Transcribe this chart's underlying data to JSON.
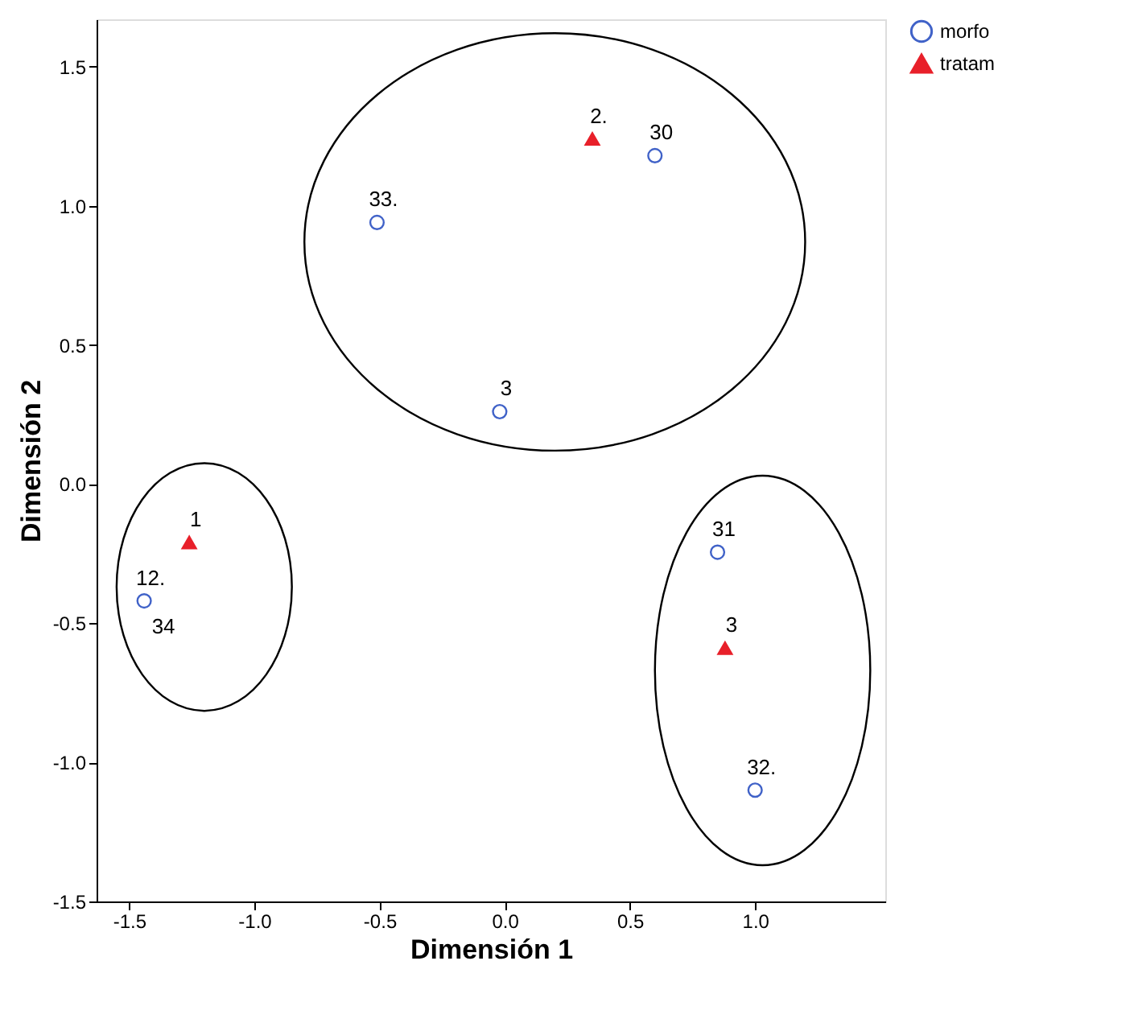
{
  "chart_data": {
    "type": "scatter",
    "xlabel": "Dimensión 1",
    "ylabel": "Dimensión 2",
    "xlim": [
      -1.63,
      1.52
    ],
    "xticks": [
      {
        "value": -1.5,
        "label": "-1.5"
      },
      {
        "value": -1.0,
        "label": "-1.0"
      },
      {
        "value": -0.5,
        "label": "-0.5"
      },
      {
        "value": 0.0,
        "label": "0.0"
      },
      {
        "value": 0.5,
        "label": "0.5"
      },
      {
        "value": 1.0,
        "label": "1.0"
      }
    ],
    "ylim": [
      -1.5,
      1.67
    ],
    "yticks": [
      {
        "value": -1.5,
        "label": "-1.5"
      },
      {
        "value": -1.0,
        "label": "-1.0"
      },
      {
        "value": -0.5,
        "label": "-0.5"
      },
      {
        "value": 0.0,
        "label": "0.0"
      },
      {
        "value": 0.5,
        "label": "0.5"
      },
      {
        "value": 1.0,
        "label": "1.0"
      },
      {
        "value": 1.5,
        "label": "1.5"
      }
    ],
    "grid": false,
    "legend": "right",
    "series": [
      {
        "name": "morfo",
        "color": "#4062c8",
        "marker": "circle",
        "x": [
          -0.51,
          0.6,
          -0.02,
          -1.44,
          0.85,
          1.0
        ],
        "values": [
          0.94,
          1.18,
          0.26,
          -0.42,
          -0.245,
          -1.1
        ]
      },
      {
        "name": "tratam",
        "color": "#e8202a",
        "marker": "triangle",
        "x": [
          0.35,
          -1.26,
          0.88
        ],
        "values": [
          1.24,
          -0.21,
          -0.59
        ]
      }
    ],
    "annotations": [
      {
        "text": "33.",
        "x": -0.51,
        "y": 0.94
      },
      {
        "text": "30",
        "x": 0.6,
        "y": 1.18
      },
      {
        "text": "3",
        "x": -0.02,
        "y": 0.26
      },
      {
        "text": "12.",
        "x": -1.44,
        "y": -0.42
      },
      {
        "text": "34",
        "x": -1.44,
        "y": -0.42
      },
      {
        "text": "31",
        "x": 0.85,
        "y": -0.245
      },
      {
        "text": "32.",
        "x": 1.0,
        "y": -1.1
      },
      {
        "text": "2.",
        "x": 0.35,
        "y": 1.24
      },
      {
        "text": "1",
        "x": -1.26,
        "y": -0.21
      },
      {
        "text": "3",
        "x": 0.88,
        "y": -0.59
      }
    ]
  }
}
